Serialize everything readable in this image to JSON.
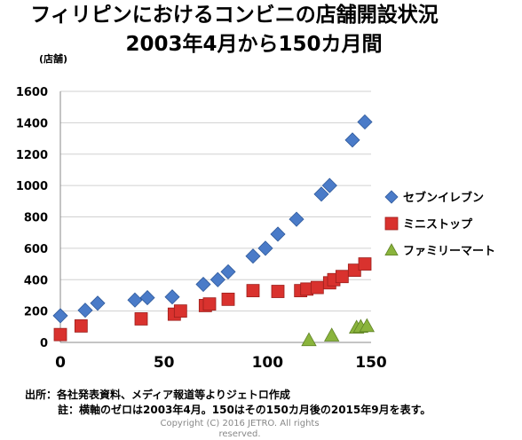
{
  "title_line1": "フィリピンにおけるコンビニの店舗開設状況",
  "title_line2": "2003年4月から150カ月間",
  "source_note": "出所：各社発表資料、メディア報道等よりジェトロ作成",
  "footnote": "註：横軸のゼロは2003年4月。150はその150カ月後の2015年9月を表す。",
  "copyright_line1": "Copyright (C) 2016 JETRO. All rights",
  "copyright_line2": "reserved.",
  "chart_data": {
    "type": "scatter",
    "ylabel": "(店舗)",
    "xlim": [
      0,
      150
    ],
    "ylim": [
      0,
      1600
    ],
    "x_ticks": [
      0,
      50,
      100,
      150
    ],
    "y_ticks": [
      0,
      200,
      400,
      600,
      800,
      1000,
      1200,
      1400,
      1600
    ],
    "grid": "horizontal",
    "legend_position": "right",
    "series": [
      {
        "name": "セブンイレブン",
        "marker": "diamond",
        "color": "#4a7bc8",
        "points": [
          [
            0,
            170
          ],
          [
            12,
            205
          ],
          [
            18,
            250
          ],
          [
            36,
            270
          ],
          [
            42,
            285
          ],
          [
            54,
            290
          ],
          [
            69,
            370
          ],
          [
            76,
            400
          ],
          [
            81,
            450
          ],
          [
            93,
            550
          ],
          [
            99,
            600
          ],
          [
            105,
            690
          ],
          [
            114,
            785
          ],
          [
            126,
            945
          ],
          [
            130,
            1000
          ],
          [
            141,
            1290
          ],
          [
            147,
            1405
          ]
        ]
      },
      {
        "name": "ミニストップ",
        "marker": "square",
        "color": "#d9322e",
        "points": [
          [
            0,
            50
          ],
          [
            10,
            105
          ],
          [
            39,
            150
          ],
          [
            55,
            180
          ],
          [
            58,
            200
          ],
          [
            70,
            235
          ],
          [
            72,
            245
          ],
          [
            81,
            275
          ],
          [
            93,
            330
          ],
          [
            105,
            325
          ],
          [
            116,
            330
          ],
          [
            119,
            340
          ],
          [
            124,
            350
          ],
          [
            130,
            380
          ],
          [
            132,
            400
          ],
          [
            136,
            420
          ],
          [
            142,
            460
          ],
          [
            147,
            500
          ]
        ]
      },
      {
        "name": "ファミリーマート",
        "marker": "triangle",
        "color": "#8ab43c",
        "points": [
          [
            120,
            15
          ],
          [
            131,
            45
          ],
          [
            143,
            95
          ],
          [
            145,
            100
          ],
          [
            148,
            105
          ]
        ]
      }
    ]
  }
}
